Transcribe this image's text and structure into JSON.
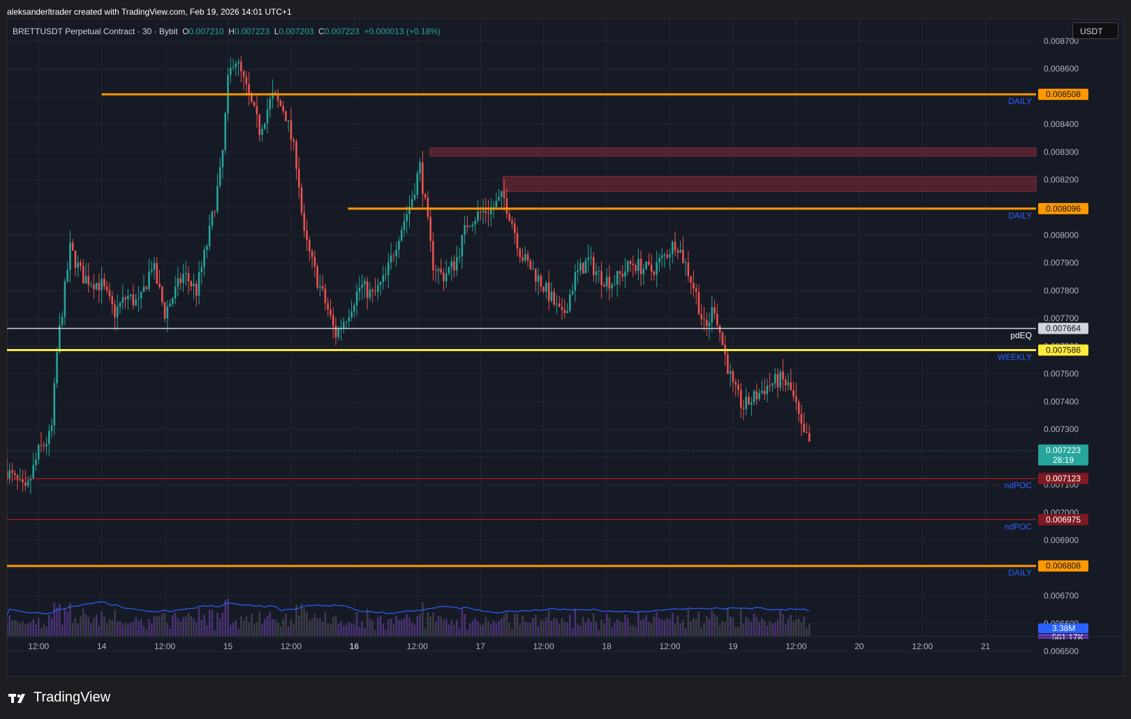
{
  "header": {
    "attribution": "aleksanderltrader created with TradingView.com, Feb 19, 2026 14:01 UTC+1"
  },
  "legend": {
    "symbol": "BRETTUSDT Perpetual Contract · 30 · Bybit",
    "o_label": "O",
    "o_value": "0.007210",
    "h_label": "H",
    "h_value": "0.007223",
    "l_label": "L",
    "l_value": "0.007203",
    "c_label": "C",
    "c_value": "0.007223",
    "change": "+0.000013 (+0.18%)"
  },
  "currency_button": "USDT",
  "logo_text": "TradingView",
  "colors": {
    "background": "#161a25",
    "up": "#26a69a",
    "down": "#ef5350",
    "daily": "#ff9800",
    "weekly": "#ffeb3b",
    "pdeq": "#d1d4dc",
    "ndpoc": "#b71c1c",
    "volume_ma": "#2962ff",
    "label_blue": "#2962ff"
  },
  "chart_data": {
    "type": "candlestick",
    "symbol": "BRETTUSDT",
    "interval": "30",
    "y_axis": {
      "ylim": [
        0.00644,
        0.00878
      ],
      "ticks": [
        "0.008700",
        "0.008600",
        "0.008500",
        "0.008400",
        "0.008300",
        "0.008200",
        "0.008100",
        "0.008000",
        "0.007900",
        "0.007800",
        "0.007700",
        "0.007600",
        "0.007500",
        "0.007400",
        "0.007300",
        "0.007200",
        "0.007100",
        "0.007000",
        "0.006900",
        "0.006800",
        "0.006700",
        "0.006600",
        "0.006500"
      ]
    },
    "x_axis": {
      "ticks": [
        "12:00",
        "14",
        "12:00",
        "15",
        "12:00",
        "16",
        "12:00",
        "17",
        "12:00",
        "18",
        "12:00",
        "19",
        "12:00",
        "20",
        "12:00",
        "21"
      ],
      "day_start": 13.25,
      "day_end": 21.4
    },
    "price_path": [
      [
        13.25,
        0.00715
      ],
      [
        13.4,
        0.00707
      ],
      [
        13.5,
        0.00722
      ],
      [
        13.6,
        0.00728
      ],
      [
        13.65,
        0.0076
      ],
      [
        13.75,
        0.00795
      ],
      [
        13.85,
        0.00785
      ],
      [
        14.0,
        0.00782
      ],
      [
        14.1,
        0.00772
      ],
      [
        14.2,
        0.00778
      ],
      [
        14.3,
        0.00775
      ],
      [
        14.4,
        0.0079
      ],
      [
        14.5,
        0.00772
      ],
      [
        14.65,
        0.00786
      ],
      [
        14.75,
        0.0078
      ],
      [
        14.85,
        0.008
      ],
      [
        14.95,
        0.00825
      ],
      [
        15.0,
        0.00855
      ],
      [
        15.05,
        0.00865
      ],
      [
        15.15,
        0.00852
      ],
      [
        15.25,
        0.00838
      ],
      [
        15.35,
        0.0085
      ],
      [
        15.45,
        0.00845
      ],
      [
        15.55,
        0.00825
      ],
      [
        15.6,
        0.008
      ],
      [
        15.7,
        0.00785
      ],
      [
        15.8,
        0.00772
      ],
      [
        15.85,
        0.00764
      ],
      [
        15.95,
        0.00772
      ],
      [
        16.05,
        0.00782
      ],
      [
        16.15,
        0.00778
      ],
      [
        16.25,
        0.00785
      ],
      [
        16.35,
        0.008
      ],
      [
        16.45,
        0.00812
      ],
      [
        16.52,
        0.00825
      ],
      [
        16.58,
        0.00805
      ],
      [
        16.62,
        0.0079
      ],
      [
        16.7,
        0.00785
      ],
      [
        16.8,
        0.0079
      ],
      [
        16.9,
        0.00805
      ],
      [
        17.0,
        0.00808
      ],
      [
        17.1,
        0.0081
      ],
      [
        17.18,
        0.00814
      ],
      [
        17.25,
        0.00805
      ],
      [
        17.32,
        0.00793
      ],
      [
        17.45,
        0.00785
      ],
      [
        17.55,
        0.00778
      ],
      [
        17.65,
        0.0077
      ],
      [
        17.75,
        0.00785
      ],
      [
        17.85,
        0.00791
      ],
      [
        17.95,
        0.00785
      ],
      [
        18.05,
        0.00783
      ],
      [
        18.2,
        0.0079
      ],
      [
        18.35,
        0.00787
      ],
      [
        18.45,
        0.00792
      ],
      [
        18.55,
        0.00798
      ],
      [
        18.62,
        0.0079
      ],
      [
        18.7,
        0.0078
      ],
      [
        18.78,
        0.00765
      ],
      [
        18.85,
        0.00775
      ],
      [
        18.92,
        0.0076
      ],
      [
        19.0,
        0.00745
      ],
      [
        19.08,
        0.00738
      ],
      [
        19.18,
        0.00742
      ],
      [
        19.28,
        0.00746
      ],
      [
        19.38,
        0.00748
      ],
      [
        19.45,
        0.00745
      ],
      [
        19.5,
        0.00738
      ],
      [
        19.55,
        0.00728
      ],
      [
        19.6,
        0.00726
      ],
      [
        19.62,
        0.007223
      ]
    ],
    "hlines": [
      {
        "price": 0.008508,
        "price_label": "0.008508",
        "text": "DAILY",
        "color": "#ff9800",
        "width": 3,
        "start_day": 14.0
      },
      {
        "price": 0.008096,
        "price_label": "0.008096",
        "text": "DAILY",
        "color": "#ff9800",
        "width": 3,
        "start_day": 15.95
      },
      {
        "price": 0.007664,
        "price_label": "0.007664",
        "text": "pdEQ",
        "color": "#d1d4dc",
        "width": 1.5,
        "start_day": 13.05
      },
      {
        "price": 0.007586,
        "price_label": "0.007586",
        "text": "WEEKLY",
        "color": "#ffeb3b",
        "width": 3,
        "start_day": 13.05
      },
      {
        "price": 0.007123,
        "price_label": "0.007123",
        "text": "ndPOC",
        "color": "#b71c1c",
        "width": 1.2,
        "start_day": 13.05
      },
      {
        "price": 0.006975,
        "price_label": "0.006975",
        "text": "ndPOC",
        "color": "#b71c1c",
        "width": 1.2,
        "start_day": 13.05
      },
      {
        "price": 0.006808,
        "price_label": "0.006808",
        "text": "DAILY",
        "color": "#ff9800",
        "width": 3,
        "start_day": 13.05
      }
    ],
    "zones": [
      {
        "start_day": 16.6,
        "top": 0.008315,
        "bottom": 0.008285
      },
      {
        "start_day": 17.18,
        "top": 0.008212,
        "bottom": 0.008158
      }
    ],
    "current_price": {
      "label": "0.007223",
      "countdown": "28:19"
    },
    "volume": {
      "last_label": "3.38M",
      "ma_label": "561.17K"
    }
  }
}
